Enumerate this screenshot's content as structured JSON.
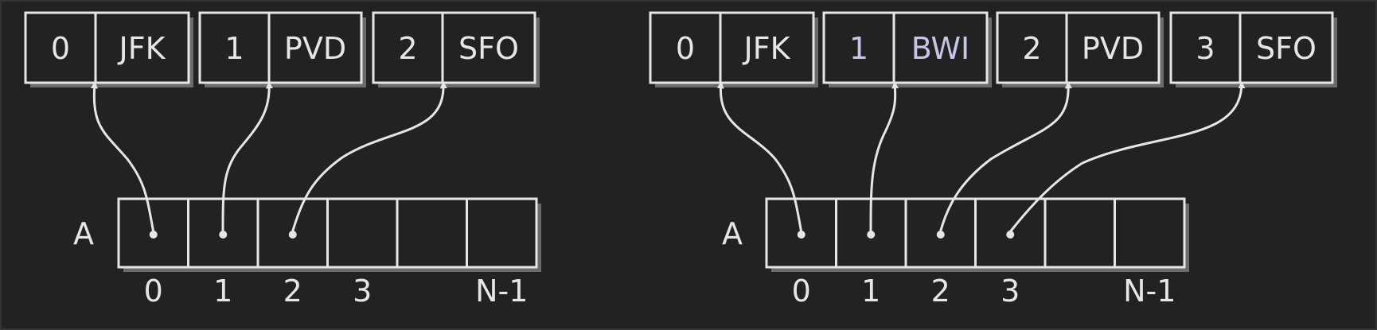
{
  "colors": {
    "background": "#222222",
    "stroke": "#e6e6e6",
    "shadow": "#6b6b6b",
    "text": "#e6e6e6",
    "highlight": "#c5c6e8"
  },
  "diagrams": [
    {
      "array_label": "A",
      "records": [
        {
          "index": "0",
          "code": "JFK",
          "highlight": false
        },
        {
          "index": "1",
          "code": "PVD",
          "highlight": false
        },
        {
          "index": "2",
          "code": "SFO",
          "highlight": false
        }
      ],
      "array_indices": [
        "0",
        "1",
        "2",
        "3",
        "",
        "N-1"
      ]
    },
    {
      "array_label": "A",
      "records": [
        {
          "index": "0",
          "code": "JFK",
          "highlight": false
        },
        {
          "index": "1",
          "code": "BWI",
          "highlight": true
        },
        {
          "index": "2",
          "code": "PVD",
          "highlight": false
        },
        {
          "index": "3",
          "code": "SFO",
          "highlight": false
        }
      ],
      "array_indices": [
        "0",
        "1",
        "2",
        "3",
        "",
        "N-1"
      ]
    }
  ]
}
